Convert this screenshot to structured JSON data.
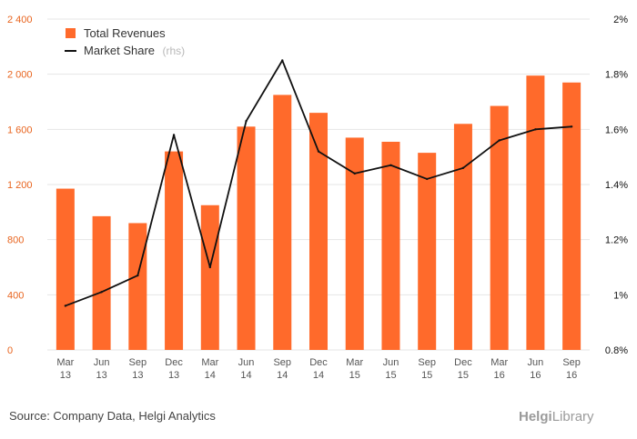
{
  "chart_data": {
    "type": "bar",
    "categories": [
      [
        "Mar",
        "13"
      ],
      [
        "Jun",
        "13"
      ],
      [
        "Sep",
        "13"
      ],
      [
        "Dec",
        "13"
      ],
      [
        "Mar",
        "14"
      ],
      [
        "Jun",
        "14"
      ],
      [
        "Sep",
        "14"
      ],
      [
        "Dec",
        "14"
      ],
      [
        "Mar",
        "15"
      ],
      [
        "Jun",
        "15"
      ],
      [
        "Sep",
        "15"
      ],
      [
        "Dec",
        "15"
      ],
      [
        "Mar",
        "16"
      ],
      [
        "Jun",
        "16"
      ],
      [
        "Sep",
        "16"
      ]
    ],
    "series": [
      {
        "name": "Total Revenues",
        "type": "bar",
        "axis": "left",
        "color": "#ff6a2b",
        "values": [
          1170,
          970,
          920,
          1440,
          1050,
          1620,
          1850,
          1720,
          1540,
          1510,
          1430,
          1640,
          1770,
          1990,
          1940
        ]
      },
      {
        "name": "Market Share",
        "suffix": "(rhs)",
        "type": "line",
        "axis": "right",
        "color": "#111111",
        "values": [
          0.96,
          1.01,
          1.07,
          1.58,
          1.1,
          1.63,
          1.85,
          1.52,
          1.44,
          1.47,
          1.42,
          1.46,
          1.56,
          1.6,
          1.61
        ]
      }
    ],
    "y_left": {
      "min": 0,
      "max": 2400,
      "ticks": [
        0,
        400,
        800,
        1200,
        1600,
        2000,
        2400
      ],
      "tick_labels": [
        "0",
        "400",
        "800",
        "1 200",
        "1 600",
        "2 000",
        "2 400"
      ]
    },
    "y_right": {
      "min": 0.8,
      "max": 2.0,
      "ticks": [
        0.8,
        1.0,
        1.2,
        1.4,
        1.6,
        1.8,
        2.0
      ],
      "tick_labels": [
        "0.8%",
        "1%",
        "1.2%",
        "1.4%",
        "1.6%",
        "1.8%",
        "2%"
      ]
    },
    "grid": true,
    "legend": "top-left"
  },
  "footer": {
    "source": "Source: Company Data, Helgi Analytics",
    "brand_main": "Helgi",
    "brand_rest": "Library"
  }
}
